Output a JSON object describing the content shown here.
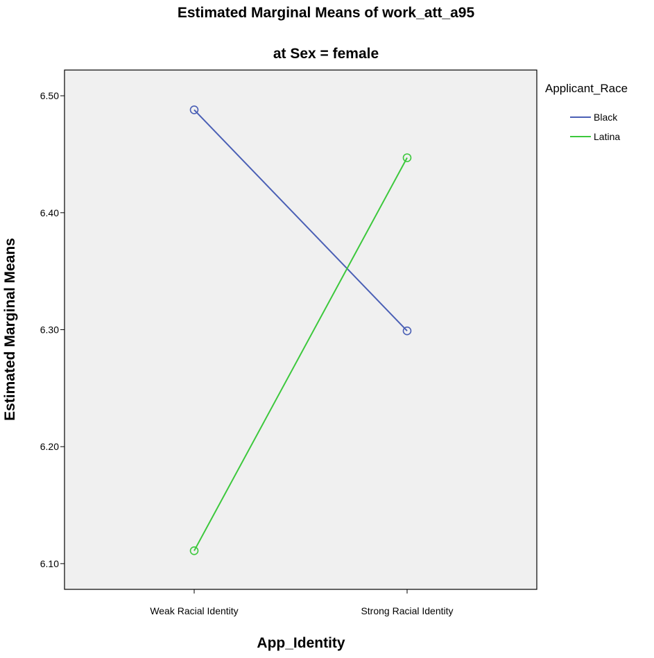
{
  "chart_data": {
    "type": "line",
    "title": "Estimated Marginal Means of work_att_a95",
    "subtitle": "at Sex = female",
    "xlabel": "App_Identity",
    "ylabel": "Estimated Marginal Means",
    "categories": [
      "Weak Racial Identity",
      "Strong Racial Identity"
    ],
    "ylim": [
      6.078,
      6.522
    ],
    "yticks": [
      "6.10",
      "6.20",
      "6.30",
      "6.40",
      "6.50"
    ],
    "grid": false,
    "legend_title": "Applicant_Race",
    "legend_position": "right",
    "plot_background": "#f0f0f0",
    "series": [
      {
        "name": "Black",
        "color": "#4a5fb5",
        "values": [
          6.488,
          6.299
        ]
      },
      {
        "name": "Latina",
        "color": "#3cc83c",
        "values": [
          6.111,
          6.447
        ]
      }
    ]
  }
}
